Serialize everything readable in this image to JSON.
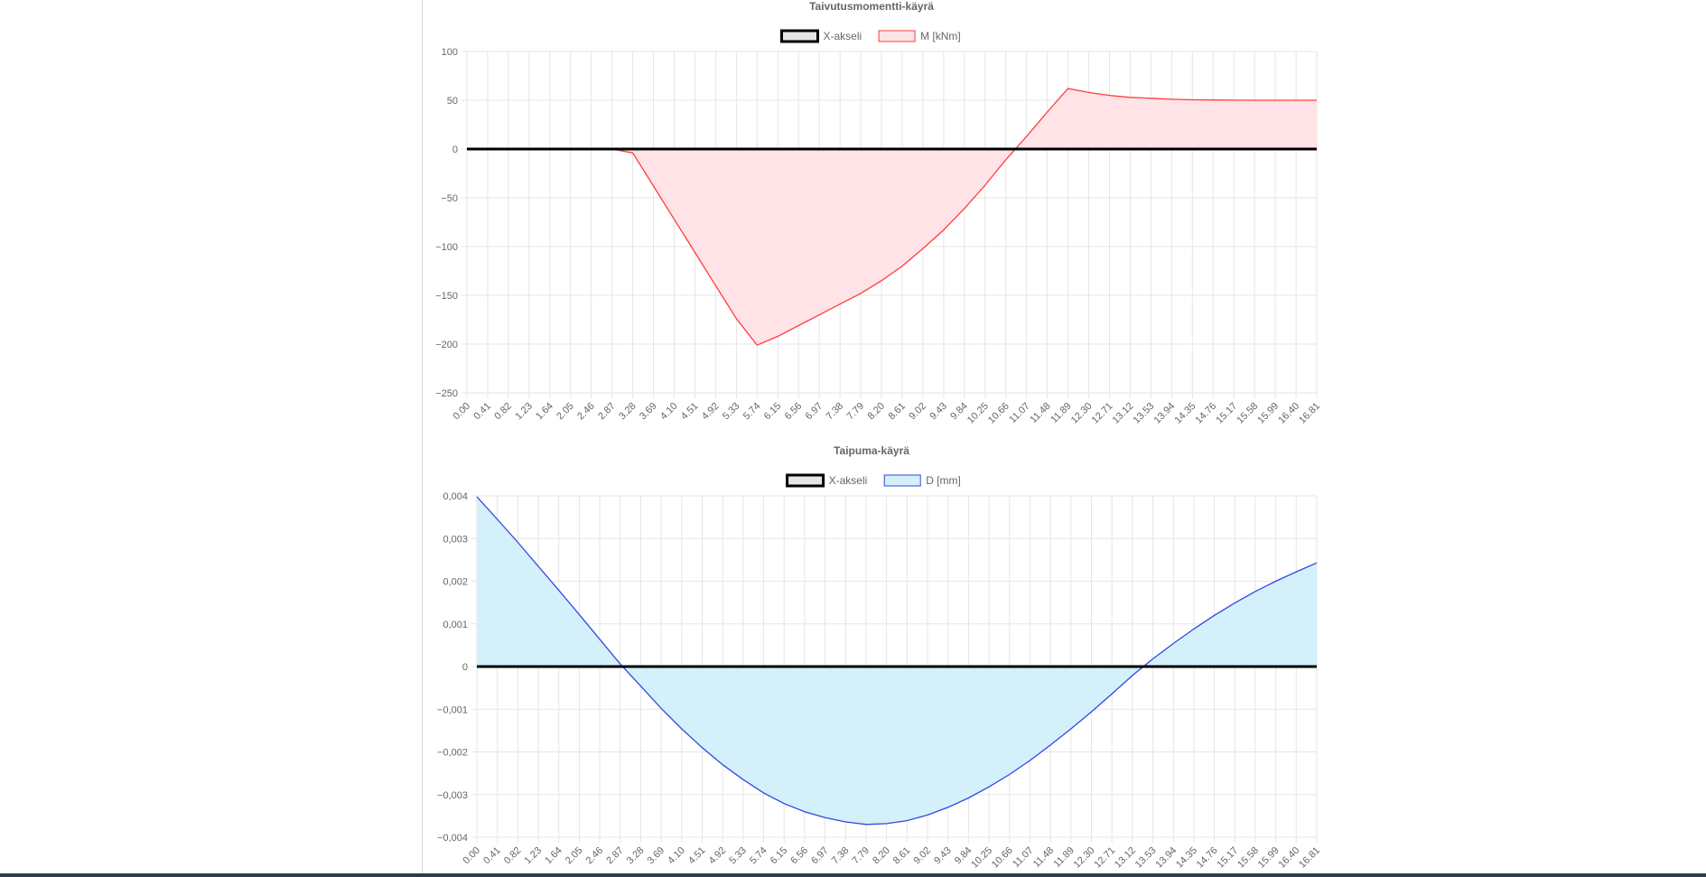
{
  "chart_data": [
    {
      "type": "area",
      "title": "Taivutusmomentti-käyrä",
      "legend": [
        "X-akseli",
        "M [kNm]"
      ],
      "legend_position": "top",
      "grid": true,
      "ylim": [
        -250,
        100
      ],
      "y_ticks": [
        "100",
        "50",
        "0",
        "−50",
        "−100",
        "−150",
        "−200",
        "−250"
      ],
      "x_labels": [
        "0.00",
        "0.41",
        "0.82",
        "1.23",
        "1.64",
        "2.05",
        "2.46",
        "2.87",
        "3.28",
        "3.69",
        "4.10",
        "4.51",
        "4.92",
        "5.33",
        "5.74",
        "6.15",
        "6.56",
        "6.97",
        "7.38",
        "7.79",
        "8.20",
        "8.61",
        "9.02",
        "9.43",
        "9.84",
        "10.25",
        "10.66",
        "11.07",
        "11.48",
        "11.89",
        "12.30",
        "12.71",
        "13.12",
        "13.53",
        "13.94",
        "14.35",
        "14.76",
        "15.17",
        "15.58",
        "15.99",
        "16.40",
        "16.81"
      ],
      "series": [
        {
          "name": "X-akseli",
          "color": "#000000",
          "fill": "#e6e6e6",
          "values": [
            0,
            0,
            0,
            0,
            0,
            0,
            0,
            0,
            0,
            0,
            0,
            0,
            0,
            0,
            0,
            0,
            0,
            0,
            0,
            0,
            0,
            0,
            0,
            0,
            0,
            0,
            0,
            0,
            0,
            0,
            0,
            0,
            0,
            0,
            0,
            0,
            0,
            0,
            0,
            0,
            0,
            0
          ]
        },
        {
          "name": "M [kNm]",
          "color": "#ff3b3b",
          "fill": "#ffe3e6",
          "values": [
            0,
            0,
            0,
            0,
            0,
            0,
            0,
            0,
            -4,
            -38,
            -72,
            -106,
            -140,
            -174,
            -201,
            -192,
            -181,
            -170,
            -159,
            -148,
            -135,
            -120,
            -102,
            -83,
            -61,
            -37,
            -11,
            13,
            38,
            62,
            58,
            55,
            53,
            52,
            51,
            50.5,
            50.3,
            50.1,
            50,
            50,
            50,
            50
          ]
        }
      ]
    },
    {
      "type": "area",
      "title": "Taipuma-käyrä",
      "legend": [
        "X-akseli",
        "D [mm]"
      ],
      "legend_position": "top",
      "grid": true,
      "ylim": [
        -0.004,
        0.004
      ],
      "y_ticks": [
        "0,004",
        "0,003",
        "0,002",
        "0,001",
        "0",
        "−0,001",
        "−0,002",
        "−0,003",
        "−0,004"
      ],
      "x_labels": [
        "0.00",
        "0.41",
        "0.82",
        "1.23",
        "1.64",
        "2.05",
        "2.46",
        "2.87",
        "3.28",
        "3.69",
        "4.10",
        "4.51",
        "4.92",
        "5.33",
        "5.74",
        "6.15",
        "6.56",
        "6.97",
        "7.38",
        "7.79",
        "8.20",
        "8.61",
        "9.02",
        "9.43",
        "9.84",
        "10.25",
        "10.66",
        "11.07",
        "11.48",
        "11.89",
        "12.30",
        "12.71",
        "13.12",
        "13.53",
        "13.94",
        "14.35",
        "14.76",
        "15.17",
        "15.58",
        "15.99",
        "16.40",
        "16.81"
      ],
      "series": [
        {
          "name": "X-akseli",
          "color": "#000000",
          "fill": "#e6e6e6",
          "values": [
            0,
            0,
            0,
            0,
            0,
            0,
            0,
            0,
            0,
            0,
            0,
            0,
            0,
            0,
            0,
            0,
            0,
            0,
            0,
            0,
            0,
            0,
            0,
            0,
            0,
            0,
            0,
            0,
            0,
            0,
            0,
            0,
            0,
            0,
            0,
            0,
            0,
            0,
            0,
            0,
            0,
            0
          ]
        },
        {
          "name": "D [mm]",
          "color": "#3346e0",
          "fill": "#d3f0fb",
          "values": [
            0.00398,
            0.00345,
            0.00291,
            0.00235,
            0.00179,
            0.00122,
            0.00064,
            6e-05,
            -0.00046,
            -0.00098,
            -0.00146,
            -0.0019,
            -0.0023,
            -0.00265,
            -0.00296,
            -0.00321,
            -0.0034,
            -0.00354,
            -0.00364,
            -0.0037,
            -0.00368,
            -0.00361,
            -0.00348,
            -0.0033,
            -0.00308,
            -0.00282,
            -0.00253,
            -0.0022,
            -0.00184,
            -0.00146,
            -0.00106,
            -0.00064,
            -0.00021,
            0.00018,
            0.00054,
            0.00088,
            0.0012,
            0.00149,
            0.00176,
            0.002,
            0.00222,
            0.00243
          ]
        }
      ]
    }
  ]
}
